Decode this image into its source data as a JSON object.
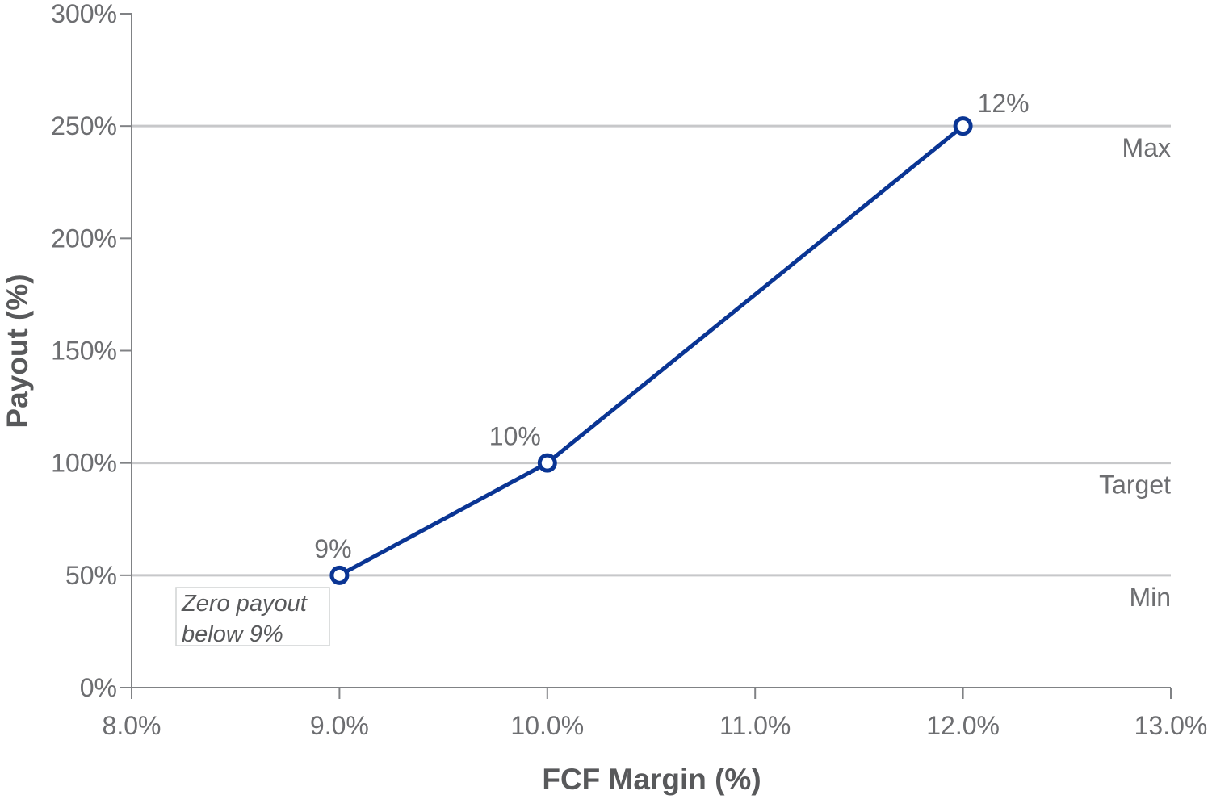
{
  "chart_data": {
    "type": "line",
    "xlabel": "FCF Margin (%)",
    "ylabel": "Payout (%)",
    "xlim": [
      8.0,
      13.0
    ],
    "ylim": [
      0,
      300
    ],
    "x_ticks": [
      8.0,
      9.0,
      10.0,
      11.0,
      12.0,
      13.0
    ],
    "x_tick_labels": [
      "8.0%",
      "9.0%",
      "10.0%",
      "11.0%",
      "12.0%",
      "13.0%"
    ],
    "y_ticks": [
      0,
      50,
      100,
      150,
      200,
      250,
      300
    ],
    "y_tick_labels": [
      "0%",
      "50%",
      "100%",
      "150%",
      "200%",
      "250%",
      "300%"
    ],
    "series": [
      {
        "x": [
          9.0,
          10.0,
          12.0
        ],
        "y": [
          50,
          100,
          250
        ],
        "point_labels": [
          "9%",
          "10%",
          "12%"
        ],
        "color": "#0a3594"
      }
    ],
    "reference_lines": [
      {
        "y": 250,
        "label": "Max"
      },
      {
        "y": 100,
        "label": "Target"
      },
      {
        "y": 50,
        "label": "Min"
      }
    ],
    "annotation": {
      "lines": [
        "Zero payout",
        "below 9%"
      ]
    },
    "grid": false,
    "legend": "none"
  }
}
